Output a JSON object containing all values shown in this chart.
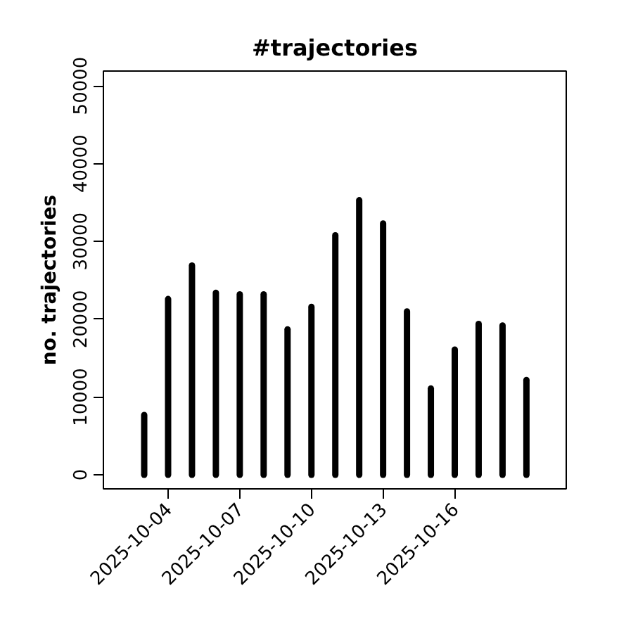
{
  "chart_data": {
    "type": "bar",
    "title": "#trajectories",
    "ylabel": "no. trajectories",
    "x": [
      "2025-10-03",
      "2025-10-04",
      "2025-10-05",
      "2025-10-06",
      "2025-10-07",
      "2025-10-08",
      "2025-10-09",
      "2025-10-10",
      "2025-10-11",
      "2025-10-12",
      "2025-10-13",
      "2025-10-14",
      "2025-10-15",
      "2025-10-16",
      "2025-10-17",
      "2025-10-18",
      "2025-10-19"
    ],
    "values": [
      7700,
      22600,
      26900,
      23400,
      23200,
      23200,
      18700,
      21600,
      30800,
      35300,
      32300,
      21000,
      11100,
      16100,
      19400,
      19200,
      12200
    ],
    "color": "#000000",
    "xlim": [
      "2025-10-01T07:00",
      "2025-10-20T16:00"
    ],
    "xticks": [
      "2025-10-04",
      "2025-10-07",
      "2025-10-10",
      "2025-10-13",
      "2025-10-16"
    ],
    "ylim": [
      -1800,
      51900
    ],
    "yticks": [
      0,
      10000,
      20000,
      30000,
      40000,
      50000
    ],
    "grid": false
  }
}
